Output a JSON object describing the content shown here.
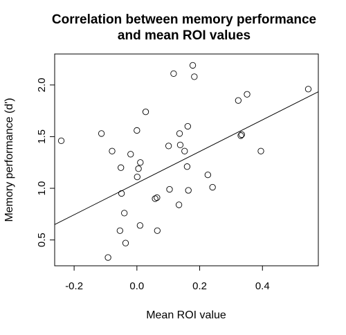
{
  "chart_data": {
    "type": "scatter",
    "title": [
      "Correlation between memory performance",
      "and mean ROI values"
    ],
    "xlabel": "Mean ROI value",
    "ylabel": "Memory performance (d')",
    "xlim": [
      -0.262,
      0.578
    ],
    "ylim": [
      0.25,
      2.3
    ],
    "xticks": [
      -0.2,
      0.0,
      0.2,
      0.4
    ],
    "xtick_labels": [
      "-0.2",
      "0.0",
      "0.2",
      "0.4"
    ],
    "yticks": [
      0.5,
      1.0,
      1.5,
      2.0
    ],
    "ytick_labels": [
      "0.5",
      "1.0",
      "1.5",
      "2.0"
    ],
    "grid": false,
    "marker": "open-circle",
    "points": [
      {
        "x": -0.241,
        "y": 1.46
      },
      {
        "x": -0.113,
        "y": 1.53
      },
      {
        "x": -0.092,
        "y": 0.33
      },
      {
        "x": -0.079,
        "y": 1.36
      },
      {
        "x": -0.054,
        "y": 0.59
      },
      {
        "x": -0.051,
        "y": 1.2
      },
      {
        "x": -0.049,
        "y": 0.95
      },
      {
        "x": -0.04,
        "y": 0.76
      },
      {
        "x": -0.036,
        "y": 0.47
      },
      {
        "x": -0.02,
        "y": 1.33
      },
      {
        "x": 0.0,
        "y": 1.56
      },
      {
        "x": 0.001,
        "y": 1.11
      },
      {
        "x": 0.005,
        "y": 1.19
      },
      {
        "x": 0.01,
        "y": 0.64
      },
      {
        "x": 0.011,
        "y": 1.25
      },
      {
        "x": 0.028,
        "y": 1.74
      },
      {
        "x": 0.058,
        "y": 0.9
      },
      {
        "x": 0.064,
        "y": 0.91
      },
      {
        "x": 0.065,
        "y": 0.59
      },
      {
        "x": 0.101,
        "y": 1.41
      },
      {
        "x": 0.104,
        "y": 0.99
      },
      {
        "x": 0.117,
        "y": 2.11
      },
      {
        "x": 0.134,
        "y": 0.84
      },
      {
        "x": 0.136,
        "y": 1.53
      },
      {
        "x": 0.138,
        "y": 1.42
      },
      {
        "x": 0.152,
        "y": 1.36
      },
      {
        "x": 0.16,
        "y": 1.21
      },
      {
        "x": 0.162,
        "y": 1.6
      },
      {
        "x": 0.164,
        "y": 0.98
      },
      {
        "x": 0.178,
        "y": 2.19
      },
      {
        "x": 0.183,
        "y": 2.08
      },
      {
        "x": 0.226,
        "y": 1.13
      },
      {
        "x": 0.241,
        "y": 1.01
      },
      {
        "x": 0.323,
        "y": 1.85
      },
      {
        "x": 0.331,
        "y": 1.51
      },
      {
        "x": 0.334,
        "y": 1.52
      },
      {
        "x": 0.351,
        "y": 1.91
      },
      {
        "x": 0.395,
        "y": 1.36
      },
      {
        "x": 0.546,
        "y": 1.96
      }
    ],
    "trend_line": {
      "intercept": 1.05,
      "slope": 1.53
    }
  }
}
